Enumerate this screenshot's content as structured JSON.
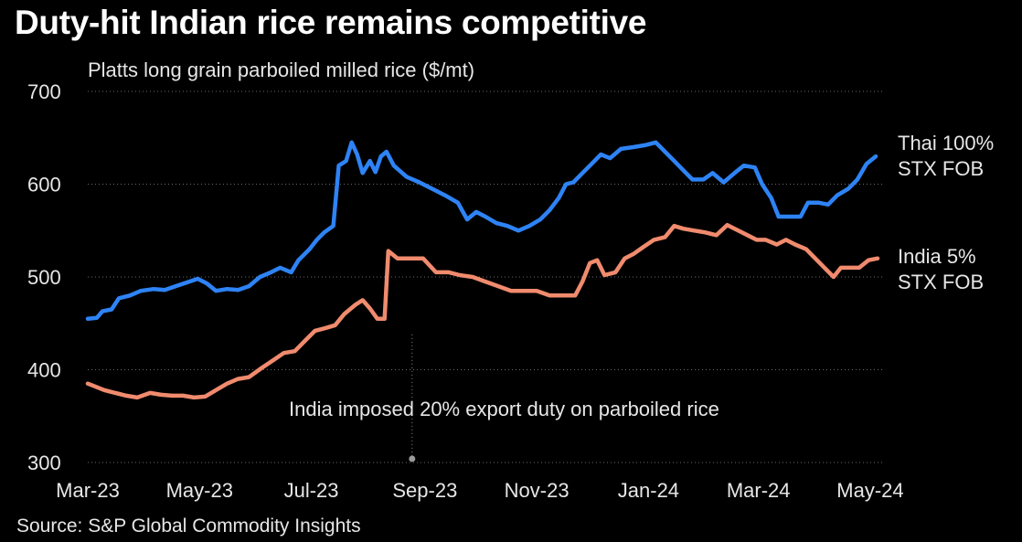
{
  "chart_data": {
    "type": "line",
    "title": "Duty-hit Indian rice remains competitive",
    "subtitle": "Platts long grain parboiled milled rice ($/mt)",
    "source": "Source: S&P Global Commodity Insights",
    "y_ticks": [
      "700",
      "600",
      "500",
      "400",
      "300"
    ],
    "ylim": [
      300,
      700
    ],
    "x_ticks": [
      "Mar-23",
      "May-23",
      "Jul-23",
      "Sep-23",
      "Nov-23",
      "Jan-24",
      "Mar-24",
      "May-24"
    ],
    "x_tick_dates": [
      "2023-03-01",
      "2023-05-01",
      "2023-07-01",
      "2023-09-01",
      "2023-11-01",
      "2024-01-01",
      "2024-03-01",
      "2024-05-01"
    ],
    "xlim": [
      "2023-03-01",
      "2024-05-08"
    ],
    "grid": "horizontal-dotted",
    "annotation": {
      "text": "India imposed 20% export duty on parboiled rice",
      "date": "2023-08-25"
    },
    "series": [
      {
        "name": "Thai 100% STX FOB",
        "label_lines": [
          "Thai 100%",
          "STX FOB"
        ],
        "color": "#2e83f5",
        "points": [
          [
            "2023-03-01",
            455
          ],
          [
            "2023-03-06",
            456
          ],
          [
            "2023-03-09",
            463
          ],
          [
            "2023-03-14",
            465
          ],
          [
            "2023-03-18",
            477
          ],
          [
            "2023-03-24",
            480
          ],
          [
            "2023-03-30",
            485
          ],
          [
            "2023-04-06",
            487
          ],
          [
            "2023-04-12",
            486
          ],
          [
            "2023-04-18",
            490
          ],
          [
            "2023-04-24",
            494
          ],
          [
            "2023-04-30",
            498
          ],
          [
            "2023-05-05",
            493
          ],
          [
            "2023-05-10",
            485
          ],
          [
            "2023-05-16",
            487
          ],
          [
            "2023-05-22",
            486
          ],
          [
            "2023-05-28",
            490
          ],
          [
            "2023-06-03",
            500
          ],
          [
            "2023-06-09",
            505
          ],
          [
            "2023-06-14",
            510
          ],
          [
            "2023-06-20",
            505
          ],
          [
            "2023-06-24",
            518
          ],
          [
            "2023-06-30",
            530
          ],
          [
            "2023-07-04",
            540
          ],
          [
            "2023-07-08",
            548
          ],
          [
            "2023-07-13",
            555
          ],
          [
            "2023-07-16",
            620
          ],
          [
            "2023-07-20",
            625
          ],
          [
            "2023-07-23",
            645
          ],
          [
            "2023-07-26",
            632
          ],
          [
            "2023-07-29",
            612
          ],
          [
            "2023-08-02",
            625
          ],
          [
            "2023-08-05",
            613
          ],
          [
            "2023-08-08",
            630
          ],
          [
            "2023-08-11",
            635
          ],
          [
            "2023-08-15",
            620
          ],
          [
            "2023-08-22",
            608
          ],
          [
            "2023-08-29",
            602
          ],
          [
            "2023-09-05",
            595
          ],
          [
            "2023-09-12",
            588
          ],
          [
            "2023-09-19",
            580
          ],
          [
            "2023-09-24",
            562
          ],
          [
            "2023-09-29",
            570
          ],
          [
            "2023-10-04",
            565
          ],
          [
            "2023-10-10",
            558
          ],
          [
            "2023-10-16",
            555
          ],
          [
            "2023-10-22",
            550
          ],
          [
            "2023-10-28",
            555
          ],
          [
            "2023-11-03",
            562
          ],
          [
            "2023-11-08",
            572
          ],
          [
            "2023-11-13",
            585
          ],
          [
            "2023-11-17",
            600
          ],
          [
            "2023-11-21",
            602
          ],
          [
            "2023-11-26",
            612
          ],
          [
            "2023-12-01",
            622
          ],
          [
            "2023-12-06",
            632
          ],
          [
            "2023-12-11",
            628
          ],
          [
            "2023-12-17",
            638
          ],
          [
            "2023-12-24",
            640
          ],
          [
            "2023-12-30",
            642
          ],
          [
            "2024-01-05",
            645
          ],
          [
            "2024-01-10",
            635
          ],
          [
            "2024-01-15",
            625
          ],
          [
            "2024-01-20",
            615
          ],
          [
            "2024-01-25",
            605
          ],
          [
            "2024-01-31",
            605
          ],
          [
            "2024-02-05",
            612
          ],
          [
            "2024-02-11",
            602
          ],
          [
            "2024-02-17",
            612
          ],
          [
            "2024-02-22",
            620
          ],
          [
            "2024-02-28",
            618
          ],
          [
            "2024-03-03",
            600
          ],
          [
            "2024-03-08",
            585
          ],
          [
            "2024-03-12",
            565
          ],
          [
            "2024-03-18",
            565
          ],
          [
            "2024-03-24",
            565
          ],
          [
            "2024-03-28",
            580
          ],
          [
            "2024-04-03",
            580
          ],
          [
            "2024-04-08",
            578
          ],
          [
            "2024-04-13",
            588
          ],
          [
            "2024-04-19",
            595
          ],
          [
            "2024-04-24",
            605
          ],
          [
            "2024-04-29",
            622
          ],
          [
            "2024-05-04",
            630
          ]
        ]
      },
      {
        "name": "India 5% STX FOB",
        "label_lines": [
          "India 5%",
          "STX FOB"
        ],
        "color": "#f08b6e",
        "points": [
          [
            "2023-03-01",
            385
          ],
          [
            "2023-03-05",
            382
          ],
          [
            "2023-03-10",
            378
          ],
          [
            "2023-03-16",
            375
          ],
          [
            "2023-03-22",
            372
          ],
          [
            "2023-03-28",
            370
          ],
          [
            "2023-04-04",
            375
          ],
          [
            "2023-04-10",
            373
          ],
          [
            "2023-04-16",
            372
          ],
          [
            "2023-04-22",
            372
          ],
          [
            "2023-04-28",
            370
          ],
          [
            "2023-05-04",
            371
          ],
          [
            "2023-05-10",
            378
          ],
          [
            "2023-05-16",
            385
          ],
          [
            "2023-05-22",
            390
          ],
          [
            "2023-05-28",
            392
          ],
          [
            "2023-06-04",
            402
          ],
          [
            "2023-06-10",
            410
          ],
          [
            "2023-06-16",
            418
          ],
          [
            "2023-06-22",
            420
          ],
          [
            "2023-06-28",
            432
          ],
          [
            "2023-07-03",
            442
          ],
          [
            "2023-07-09",
            445
          ],
          [
            "2023-07-14",
            448
          ],
          [
            "2023-07-19",
            460
          ],
          [
            "2023-07-25",
            470
          ],
          [
            "2023-07-29",
            475
          ],
          [
            "2023-08-02",
            466
          ],
          [
            "2023-08-06",
            455
          ],
          [
            "2023-08-10",
            455
          ],
          [
            "2023-08-12",
            528
          ],
          [
            "2023-08-17",
            520
          ],
          [
            "2023-08-24",
            520
          ],
          [
            "2023-08-31",
            520
          ],
          [
            "2023-09-07",
            505
          ],
          [
            "2023-09-14",
            505
          ],
          [
            "2023-09-20",
            502
          ],
          [
            "2023-09-27",
            500
          ],
          [
            "2023-10-04",
            495
          ],
          [
            "2023-10-11",
            490
          ],
          [
            "2023-10-18",
            485
          ],
          [
            "2023-10-25",
            485
          ],
          [
            "2023-11-01",
            485
          ],
          [
            "2023-11-08",
            480
          ],
          [
            "2023-11-15",
            480
          ],
          [
            "2023-11-22",
            480
          ],
          [
            "2023-11-26",
            495
          ],
          [
            "2023-11-30",
            515
          ],
          [
            "2023-12-04",
            518
          ],
          [
            "2023-12-08",
            502
          ],
          [
            "2023-12-14",
            505
          ],
          [
            "2023-12-19",
            520
          ],
          [
            "2023-12-24",
            525
          ],
          [
            "2023-12-29",
            532
          ],
          [
            "2024-01-04",
            540
          ],
          [
            "2024-01-10",
            543
          ],
          [
            "2024-01-15",
            555
          ],
          [
            "2024-01-20",
            552
          ],
          [
            "2024-01-26",
            550
          ],
          [
            "2024-02-01",
            548
          ],
          [
            "2024-02-07",
            545
          ],
          [
            "2024-02-13",
            556
          ],
          [
            "2024-02-19",
            550
          ],
          [
            "2024-02-24",
            545
          ],
          [
            "2024-02-29",
            540
          ],
          [
            "2024-03-05",
            540
          ],
          [
            "2024-03-11",
            535
          ],
          [
            "2024-03-16",
            540
          ],
          [
            "2024-03-21",
            535
          ],
          [
            "2024-03-27",
            530
          ],
          [
            "2024-04-01",
            520
          ],
          [
            "2024-04-06",
            510
          ],
          [
            "2024-04-11",
            500
          ],
          [
            "2024-04-15",
            510
          ],
          [
            "2024-04-20",
            510
          ],
          [
            "2024-04-25",
            510
          ],
          [
            "2024-04-30",
            518
          ],
          [
            "2024-05-05",
            520
          ]
        ]
      }
    ]
  }
}
